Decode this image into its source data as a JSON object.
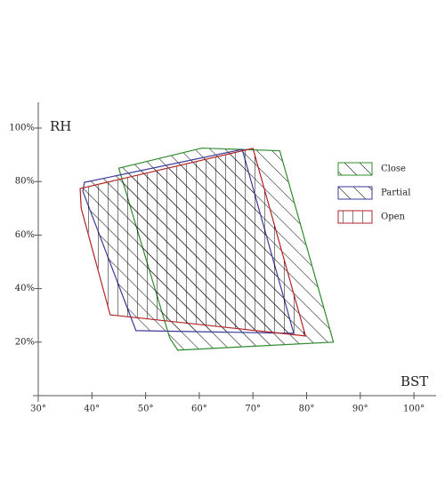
{
  "chart_data": {
    "type": "polygon",
    "x_label": "BST",
    "y_label": "RH",
    "xlim": [
      29,
      104
    ],
    "ylim": [
      0,
      110
    ],
    "xticks": [
      {
        "value": 30,
        "label": "30°"
      },
      {
        "value": 40,
        "label": "40°"
      },
      {
        "value": 50,
        "label": "50°"
      },
      {
        "value": 60,
        "label": "60°"
      },
      {
        "value": 70,
        "label": "70°"
      },
      {
        "value": 80,
        "label": "80°"
      },
      {
        "value": 90,
        "label": "90°"
      },
      {
        "value": 100,
        "label": "100°"
      }
    ],
    "yticks": [
      {
        "value": 20,
        "label": "20%"
      },
      {
        "value": 40,
        "label": "40%"
      },
      {
        "value": 60,
        "label": "60%"
      },
      {
        "value": 80,
        "label": "80%"
      },
      {
        "value": 100,
        "label": "100%"
      }
    ],
    "series": [
      {
        "name": "Close",
        "color": "#2e8b2e",
        "pattern": "diagonal",
        "x": [
          45,
          60.5,
          75,
          85,
          56,
          54.5
        ],
        "values": [
          85,
          92.5,
          91.5,
          20,
          17,
          21.5
        ]
      },
      {
        "name": "Partial",
        "color": "#3a3a9a",
        "pattern": "diagonal",
        "x": [
          38.6,
          68,
          77.6,
          48.2,
          38.3
        ],
        "values": [
          79.7,
          92,
          23.3,
          24.3,
          76.4
        ]
      },
      {
        "name": "Open",
        "color": "#b22222",
        "pattern": "vertical",
        "x": [
          37.8,
          70,
          79.8,
          43.4,
          38
        ],
        "values": [
          77.4,
          92.4,
          22.3,
          30.2,
          70
        ]
      }
    ]
  }
}
